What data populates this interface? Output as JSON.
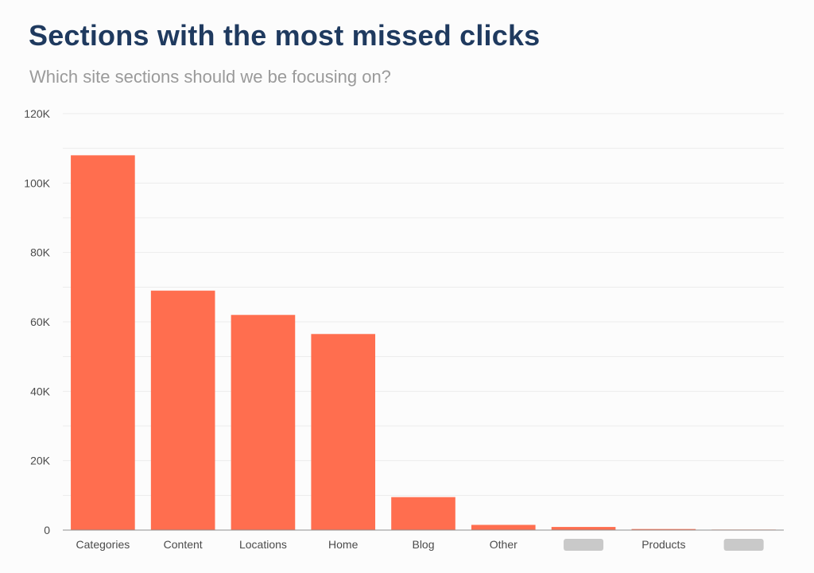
{
  "chart_data": {
    "type": "bar",
    "title": "Sections with the most missed clicks",
    "subtitle": "Which site sections should we be focusing on?",
    "categories": [
      "Categories",
      "Content",
      "Locations",
      "Home",
      "Blog",
      "Other",
      "",
      "Products",
      ""
    ],
    "values": [
      108000,
      69000,
      62000,
      56500,
      9500,
      1500,
      900,
      300,
      150
    ],
    "xlabel": "",
    "ylabel": "",
    "ylim": [
      0,
      120000
    ],
    "ticks": [
      0,
      20000,
      40000,
      60000,
      80000,
      100000,
      120000
    ],
    "tick_labels": [
      "0",
      "20K",
      "40K",
      "60K",
      "80K",
      "100K",
      "120K"
    ],
    "grid": true,
    "bar_color": "#ff6e4f",
    "grid_color": "#ececec"
  }
}
